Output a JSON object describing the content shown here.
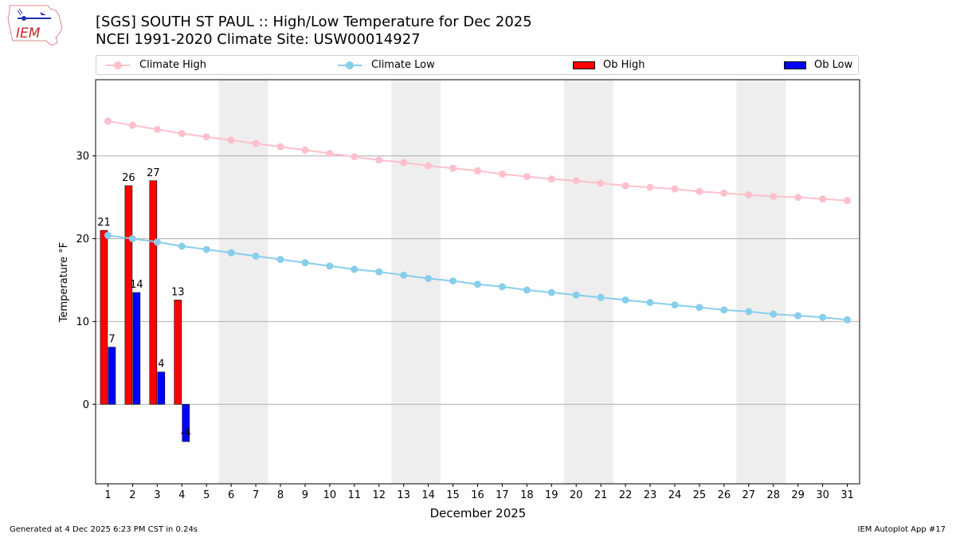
{
  "header": {
    "title_line1": "[SGS] SOUTH ST PAUL :: High/Low Temperature for Dec 2025",
    "title_line2": "NCEI 1991-2020 Climate Site: USW00014927",
    "logo_text": "IEM"
  },
  "legend": {
    "climate_high": "Climate High",
    "climate_low": "Climate Low",
    "ob_high": "Ob High",
    "ob_low": "Ob Low"
  },
  "colors": {
    "climate_high": "#ffc0cb",
    "climate_low": "#87ceeb",
    "ob_high": "#ff0000",
    "ob_low": "#0000ff",
    "weekend_shade": "#eeeeee",
    "grid": "#b0b0b0"
  },
  "footer": {
    "generated": "Generated at 4 Dec 2025 6:23 PM CST in 0.24s",
    "app": "IEM Autoplot App #17"
  },
  "chart_data": {
    "type": "bar",
    "xlabel": "December 2025",
    "ylabel": "Temperature °F",
    "ylim": [
      -9.6,
      39.2
    ],
    "xlim": [
      0.5,
      31.5
    ],
    "yticks": [
      0,
      10,
      20,
      30
    ],
    "grid": "horizontal",
    "legend_position": "top",
    "days": [
      1,
      2,
      3,
      4,
      5,
      6,
      7,
      8,
      9,
      10,
      11,
      12,
      13,
      14,
      15,
      16,
      17,
      18,
      19,
      20,
      21,
      22,
      23,
      24,
      25,
      26,
      27,
      28,
      29,
      30,
      31
    ],
    "weekend_days": [
      6,
      7,
      13,
      14,
      20,
      21,
      27,
      28
    ],
    "series": [
      {
        "name": "Climate High",
        "kind": "line",
        "values": [
          34.2,
          33.7,
          33.2,
          32.7,
          32.3,
          31.9,
          31.5,
          31.1,
          30.7,
          30.3,
          29.9,
          29.5,
          29.2,
          28.8,
          28.5,
          28.2,
          27.8,
          27.5,
          27.2,
          27.0,
          26.7,
          26.4,
          26.2,
          26.0,
          25.7,
          25.5,
          25.3,
          25.1,
          25.0,
          24.8,
          24.6
        ]
      },
      {
        "name": "Climate Low",
        "kind": "line",
        "values": [
          20.4,
          20.0,
          19.6,
          19.1,
          18.7,
          18.3,
          17.9,
          17.5,
          17.1,
          16.7,
          16.3,
          16.0,
          15.6,
          15.2,
          14.9,
          14.5,
          14.2,
          13.8,
          13.5,
          13.2,
          12.9,
          12.6,
          12.3,
          12.0,
          11.7,
          11.4,
          11.2,
          10.9,
          10.7,
          10.5,
          10.2
        ]
      },
      {
        "name": "Ob High",
        "kind": "bar",
        "values": [
          21,
          26.4,
          27,
          12.6
        ]
      },
      {
        "name": "Ob Low",
        "kind": "bar",
        "values": [
          6.9,
          13.5,
          3.9,
          -4.5
        ]
      }
    ],
    "bar_labels": {
      "ob_high": [
        "21",
        "26",
        "27",
        "13"
      ],
      "ob_low": [
        "7",
        "14",
        "4",
        "-4"
      ]
    }
  }
}
